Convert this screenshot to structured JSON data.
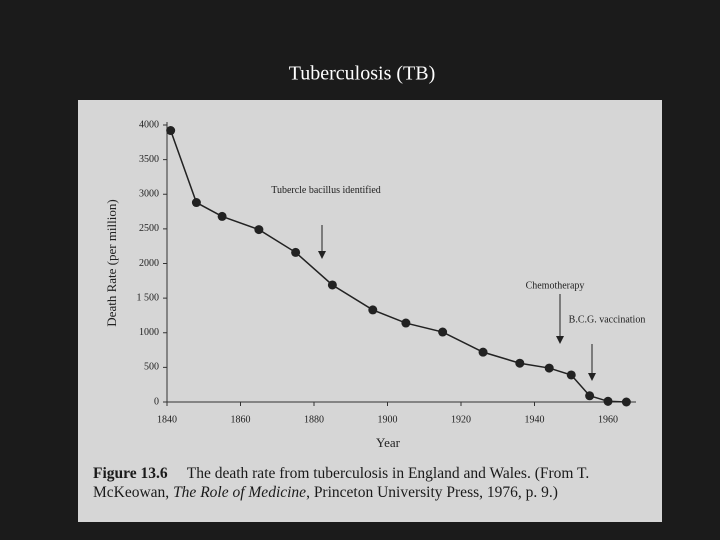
{
  "slide_title": "Tuberculosis (TB)",
  "chart_data": {
    "type": "line",
    "x_label": "Year",
    "y_label": "Death Rate (per million)",
    "x": [
      1841,
      1848,
      1855,
      1865,
      1875,
      1885,
      1896,
      1905,
      1915,
      1926,
      1936,
      1944,
      1950,
      1955,
      1960,
      1965
    ],
    "values": [
      3920,
      2880,
      2680,
      2490,
      2160,
      1690,
      1330,
      1140,
      1010,
      720,
      560,
      490,
      390,
      90,
      10,
      0
    ],
    "color": "#222222",
    "xlim": [
      1840,
      1968
    ],
    "ylim": [
      0,
      4000
    ],
    "xticks": [
      1840,
      1860,
      1880,
      1900,
      1920,
      1940,
      1960
    ],
    "yticks": [
      0,
      500,
      1000,
      {
        "value": 1500,
        "label": "1 500"
      },
      2000,
      2500,
      3000,
      3500,
      4000
    ],
    "annotations": [
      "Tubercle bacillus identified",
      "Chemotherapy",
      "B.C.G. vaccination"
    ]
  },
  "caption": {
    "label": "Figure 13.6",
    "text": "The death rate from tuberculosis in England and Wales. (From T. McKeowan,",
    "book": "The Role of Medicine",
    "source": ", Princeton University Press, 1976, p. 9.)"
  }
}
